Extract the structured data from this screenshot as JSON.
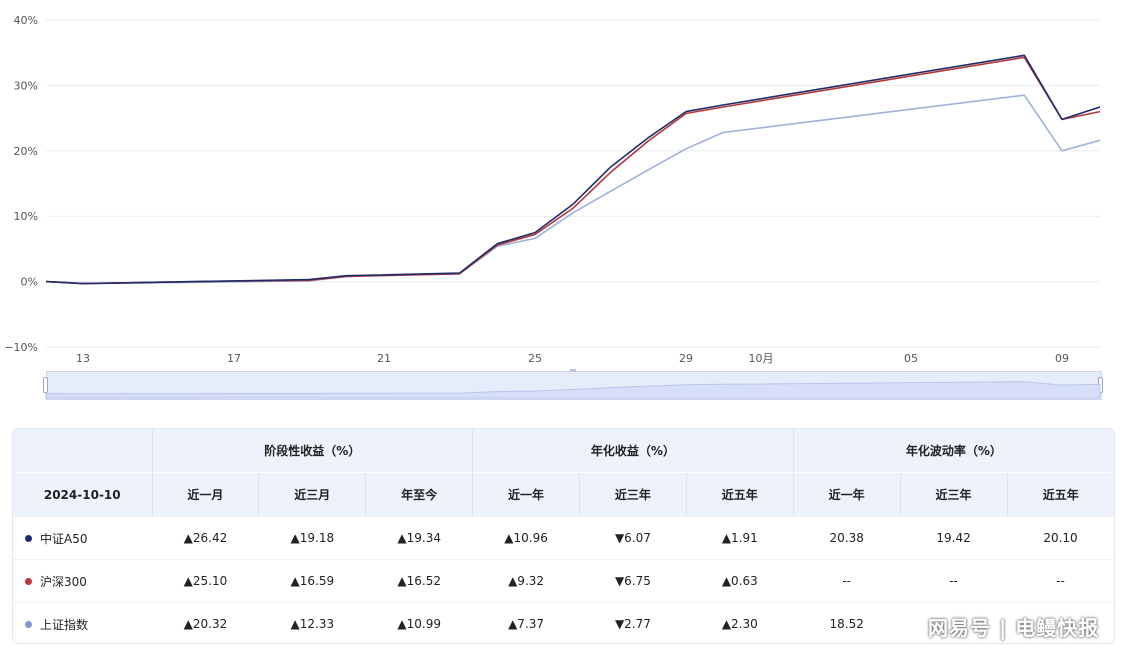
{
  "chart_data": {
    "type": "line",
    "y_ticks": [
      "40%",
      "30%",
      "20%",
      "10%",
      "0%",
      "−10%"
    ],
    "ylim": [
      -10,
      40
    ],
    "x_ticks": [
      "13",
      "17",
      "21",
      "25",
      "29",
      "10月",
      "05",
      "09"
    ],
    "x_tick_dates": [
      "2024-08-13",
      "2024-08-17",
      "2024-08-21",
      "2024-08-25",
      "2024-08-29",
      "2024-10-01",
      "2024-10-05",
      "2024-10-09"
    ],
    "grid": true,
    "series": [
      {
        "name": "中证A50",
        "color": "#1f2c6b",
        "points": [
          [
            "2024-08-12",
            0
          ],
          [
            "2024-08-13",
            -0.3
          ],
          [
            "2024-08-16",
            0.0
          ],
          [
            "2024-08-19",
            0.3
          ],
          [
            "2024-08-20",
            0.9
          ],
          [
            "2024-08-23",
            1.3
          ],
          [
            "2024-08-24",
            5.8
          ],
          [
            "2024-08-25",
            7.5
          ],
          [
            "2024-08-26",
            11.8
          ],
          [
            "2024-08-27",
            17.5
          ],
          [
            "2024-08-28",
            22.0
          ],
          [
            "2024-08-29",
            26.0
          ],
          [
            "2024-08-30",
            27.0
          ],
          [
            "2024-10-08",
            34.6
          ],
          [
            "2024-10-09",
            24.8
          ],
          [
            "2024-10-10",
            26.7
          ]
        ]
      },
      {
        "name": "沪深300",
        "color": "#b5373c",
        "points": [
          [
            "2024-08-12",
            0
          ],
          [
            "2024-08-13",
            -0.3
          ],
          [
            "2024-08-16",
            0.0
          ],
          [
            "2024-08-19",
            0.2
          ],
          [
            "2024-08-20",
            0.8
          ],
          [
            "2024-08-23",
            1.2
          ],
          [
            "2024-08-24",
            5.6
          ],
          [
            "2024-08-25",
            7.2
          ],
          [
            "2024-08-26",
            11.2
          ],
          [
            "2024-08-27",
            16.7
          ],
          [
            "2024-08-28",
            21.5
          ],
          [
            "2024-08-29",
            25.7
          ],
          [
            "2024-08-30",
            26.7
          ],
          [
            "2024-10-08",
            34.3
          ],
          [
            "2024-10-09",
            24.8
          ],
          [
            "2024-10-10",
            26.0
          ]
        ]
      },
      {
        "name": "上证指数",
        "color": "#9fb2d8",
        "points": [
          [
            "2024-08-12",
            0
          ],
          [
            "2024-08-13",
            -0.3
          ],
          [
            "2024-08-16",
            -0.1
          ],
          [
            "2024-08-19",
            0.1
          ],
          [
            "2024-08-20",
            0.8
          ],
          [
            "2024-08-23",
            1.2
          ],
          [
            "2024-08-24",
            5.4
          ],
          [
            "2024-08-25",
            6.6
          ],
          [
            "2024-08-26",
            10.5
          ],
          [
            "2024-08-27",
            13.8
          ],
          [
            "2024-08-28",
            17.1
          ],
          [
            "2024-08-29",
            20.3
          ],
          [
            "2024-08-30",
            22.8
          ],
          [
            "2024-10-08",
            28.5
          ],
          [
            "2024-10-09",
            20.0
          ],
          [
            "2024-10-10",
            21.6
          ]
        ]
      }
    ]
  },
  "table": {
    "date": "2024-10-10",
    "groups": [
      "阶段性收益（%）",
      "年化收益（%）",
      "年化波动率（%）"
    ],
    "columns": [
      "近一月",
      "近三月",
      "年至今",
      "近一年",
      "近三年",
      "近五年",
      "近一年",
      "近三年",
      "近五年"
    ],
    "rows": [
      {
        "name": "中证A50",
        "color": "#1f2c6b",
        "cells": [
          {
            "v": "▲26.42",
            "dir": "up"
          },
          {
            "v": "▲19.18",
            "dir": "up"
          },
          {
            "v": "▲19.34",
            "dir": "up"
          },
          {
            "v": "▲10.96",
            "dir": "up"
          },
          {
            "v": "▼6.07",
            "dir": "down"
          },
          {
            "v": "▲1.91",
            "dir": "up"
          },
          {
            "v": "20.38",
            "dir": ""
          },
          {
            "v": "19.42",
            "dir": ""
          },
          {
            "v": "20.10",
            "dir": ""
          }
        ]
      },
      {
        "name": "沪深300",
        "color": "#b5373c",
        "cells": [
          {
            "v": "▲25.10",
            "dir": "up"
          },
          {
            "v": "▲16.59",
            "dir": "up"
          },
          {
            "v": "▲16.52",
            "dir": "up"
          },
          {
            "v": "▲9.32",
            "dir": "up"
          },
          {
            "v": "▼6.75",
            "dir": "down"
          },
          {
            "v": "▲0.63",
            "dir": "up"
          },
          {
            "v": "--",
            "dir": ""
          },
          {
            "v": "--",
            "dir": ""
          },
          {
            "v": "--",
            "dir": ""
          }
        ]
      },
      {
        "name": "上证指数",
        "color": "#7f98d6",
        "cells": [
          {
            "v": "▲20.32",
            "dir": "up"
          },
          {
            "v": "▲12.33",
            "dir": "up"
          },
          {
            "v": "▲10.99",
            "dir": "up"
          },
          {
            "v": "▲7.37",
            "dir": "up"
          },
          {
            "v": "▼2.77",
            "dir": "down"
          },
          {
            "v": "▲2.30",
            "dir": "up"
          },
          {
            "v": "18.52",
            "dir": ""
          },
          {
            "v": "",
            "dir": ""
          },
          {
            "v": "",
            "dir": ""
          }
        ]
      }
    ]
  },
  "watermark": "网易号 | 电鳗快报"
}
